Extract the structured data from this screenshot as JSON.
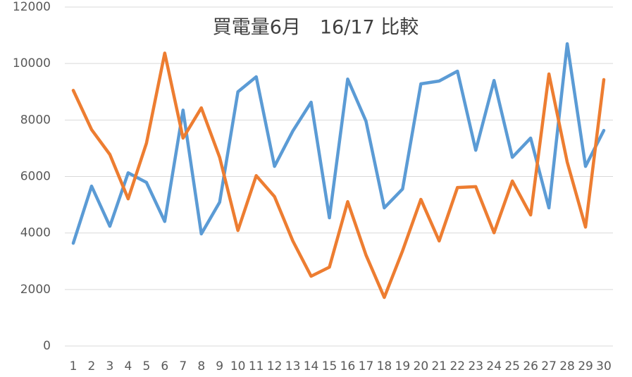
{
  "chart_data": {
    "type": "line",
    "title": "買電量6月　16/17 比較",
    "categories": [
      "1",
      "2",
      "3",
      "4",
      "5",
      "6",
      "7",
      "8",
      "9",
      "10",
      "11",
      "12",
      "13",
      "14",
      "15",
      "16",
      "17",
      "18",
      "19",
      "20",
      "21",
      "22",
      "23",
      "24",
      "25",
      "26",
      "27",
      "28",
      "29",
      "30"
    ],
    "series": [
      {
        "color": "#5b9bd5",
        "values": [
          3640,
          5660,
          4240,
          6130,
          5790,
          4410,
          8350,
          3970,
          5090,
          9000,
          9530,
          6360,
          7610,
          8630,
          4540,
          9450,
          7960,
          4890,
          5560,
          9280,
          9380,
          9730,
          6930,
          9400,
          6680,
          7360,
          4890,
          10700,
          6360,
          7630
        ]
      },
      {
        "color": "#ed7d31",
        "values": [
          9050,
          7660,
          6780,
          5210,
          7180,
          10370,
          7360,
          8430,
          6680,
          4090,
          6030,
          5290,
          3720,
          2470,
          2790,
          5110,
          3220,
          1720,
          3370,
          5190,
          3720,
          5610,
          5640,
          4010,
          5840,
          4640,
          9630,
          6510,
          4210,
          9430
        ]
      }
    ],
    "ylim": [
      0,
      12000
    ],
    "yticks": [
      0,
      2000,
      4000,
      6000,
      8000,
      10000,
      12000
    ],
    "grid": true
  }
}
